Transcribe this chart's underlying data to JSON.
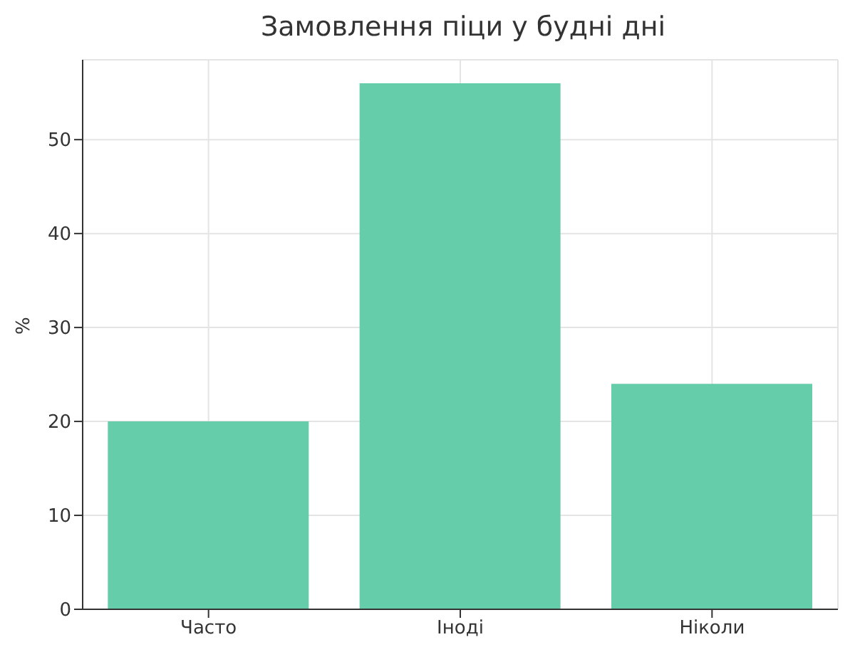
{
  "chart_data": {
    "type": "bar",
    "title": "Замовлення піци у будні дні",
    "ylabel": "%",
    "categories": [
      "Часто",
      "Іноді",
      "Ніколи"
    ],
    "values": [
      20,
      56,
      24
    ],
    "color": "#66cdaa",
    "ylim": [
      0,
      58.5
    ],
    "yticks": [
      0,
      10,
      20,
      30,
      40,
      50
    ],
    "grid": true
  }
}
